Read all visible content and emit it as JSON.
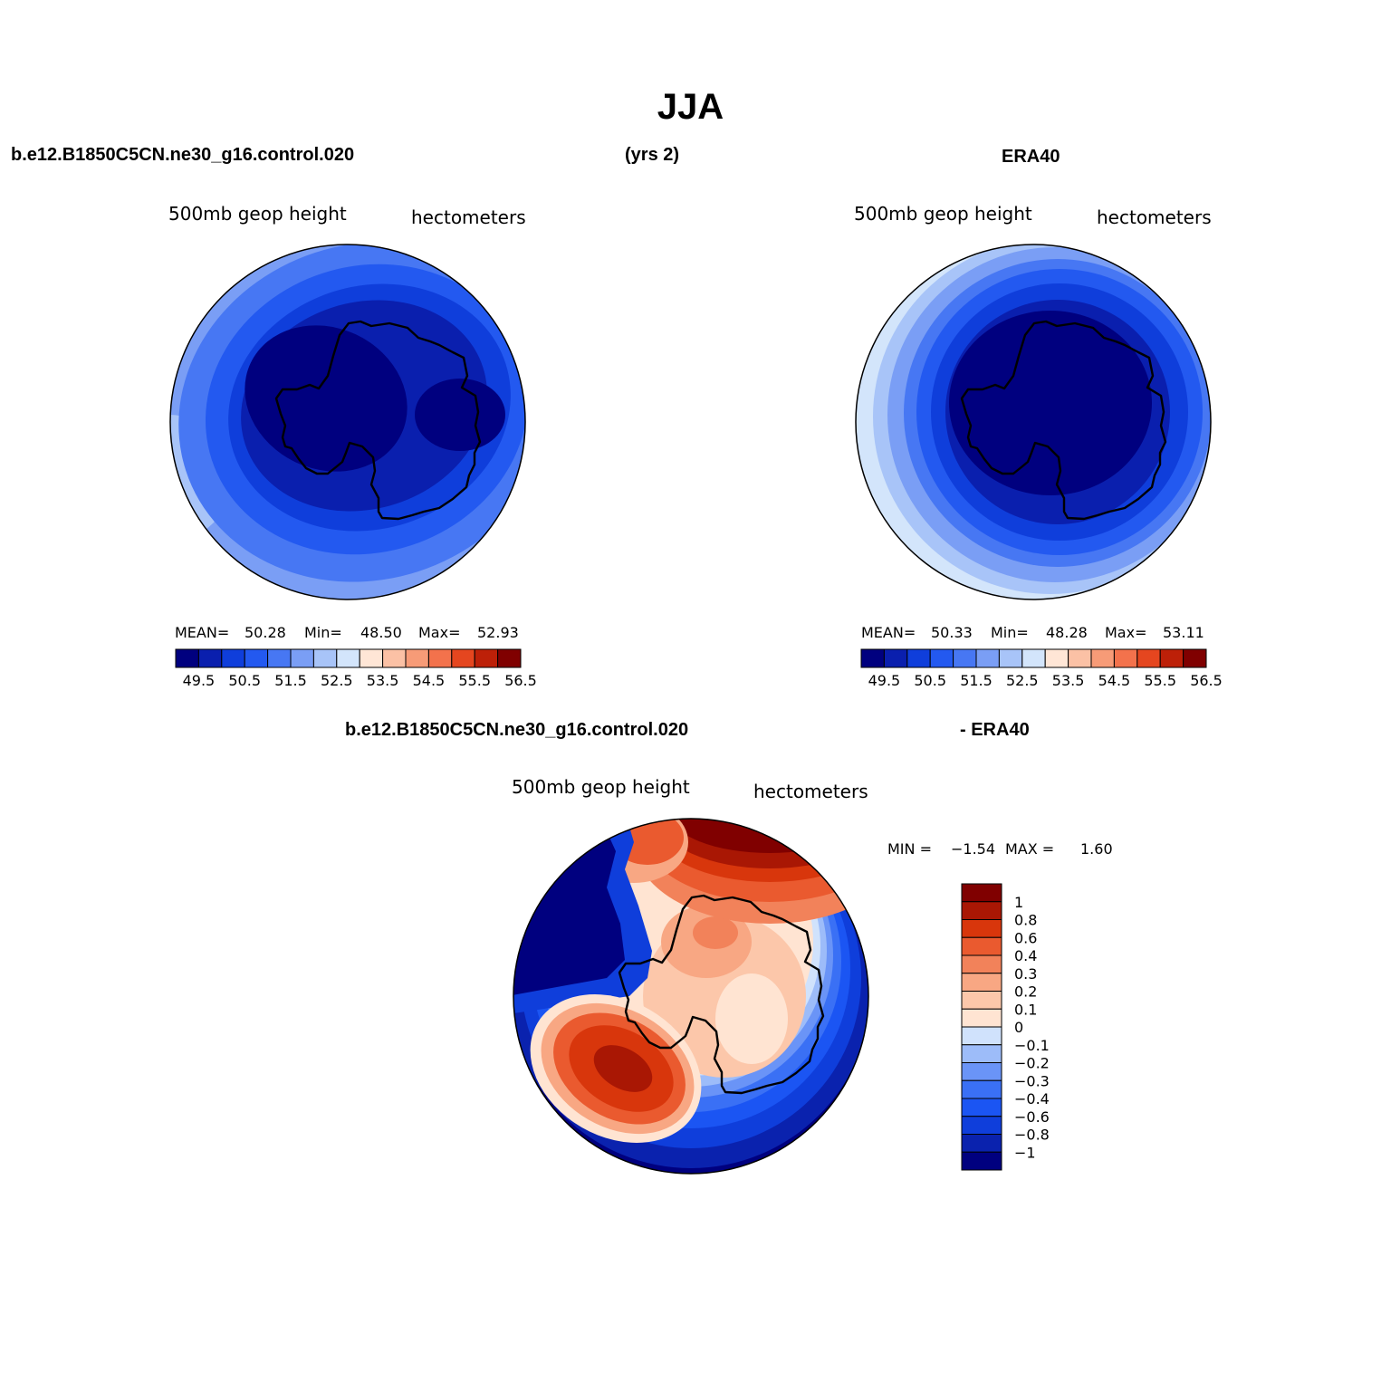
{
  "page": {
    "title": "JJA",
    "left_case": "b.e12.B1850C5CN.ne30_g16.control.020",
    "years": "(yrs 2)",
    "right_case": "ERA40",
    "diff_case": "b.e12.B1850C5CN.ne30_g16.control.020",
    "diff_ref": "- ERA40"
  },
  "colors": {
    "abs_palette": [
      "#00007f",
      "#0a1fae",
      "#0f3edb",
      "#2359f0",
      "#4777f3",
      "#7a9ef5",
      "#a8c4f8",
      "#d3e5fb",
      "#ffe6d6",
      "#fbc1a5",
      "#f79b77",
      "#f3724c",
      "#e5461f",
      "#bd2008",
      "#800000"
    ],
    "diff_palette": [
      "#00007f",
      "#0a22ae",
      "#0f3edb",
      "#1b55f3",
      "#3a70f5",
      "#6a94f7",
      "#9dbcf9",
      "#d0e2fc",
      "#ffe4d2",
      "#fcc7aa",
      "#f8a783",
      "#f2825a",
      "#ea5a2f",
      "#d8360c",
      "#a91704",
      "#800000"
    ],
    "coast": "#000000"
  },
  "chart_data": [
    {
      "type": "heatmap",
      "projection": "south-polar-stereographic",
      "field": "500mb geop height",
      "units": "hectometers",
      "stats": {
        "mean_label": "MEAN=",
        "mean": "50.28",
        "min_label": "Min=",
        "min": "48.50",
        "max_label": "Max=",
        "max": "52.93"
      },
      "colorbar": {
        "orientation": "horizontal",
        "labels": [
          "49.5",
          "50.5",
          "51.5",
          "52.5",
          "53.5",
          "54.5",
          "55.5",
          "56.5"
        ]
      }
    },
    {
      "type": "heatmap",
      "projection": "south-polar-stereographic",
      "field": "500mb geop height",
      "units": "hectometers",
      "stats": {
        "mean_label": "MEAN=",
        "mean": "50.33",
        "min_label": "Min=",
        "min": "48.28",
        "max_label": "Max=",
        "max": "53.11"
      },
      "colorbar": {
        "orientation": "horizontal",
        "labels": [
          "49.5",
          "50.5",
          "51.5",
          "52.5",
          "53.5",
          "54.5",
          "55.5",
          "56.5"
        ]
      }
    },
    {
      "type": "heatmap",
      "projection": "south-polar-stereographic",
      "field": "500mb geop height",
      "units": "hectometers",
      "stats": {
        "min_label": "MIN =",
        "min": "−1.54",
        "max_label": "MAX =",
        "max": "1.60"
      },
      "colorbar": {
        "orientation": "vertical",
        "labels": [
          "1",
          "0.8",
          "0.6",
          "0.4",
          "0.3",
          "0.2",
          "0.1",
          "0",
          "−0.1",
          "−0.2",
          "−0.3",
          "−0.4",
          "−0.6",
          "−0.8",
          "−1"
        ]
      }
    }
  ]
}
